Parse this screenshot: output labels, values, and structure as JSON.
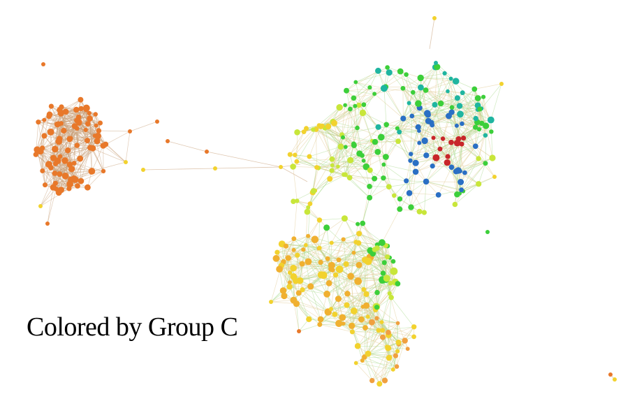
{
  "caption": "Colored by Group C",
  "colors": {
    "orange": "#e8782a",
    "yellow": "#f2d22e",
    "yellowgreen": "#c8e63a",
    "green": "#3ccf3a",
    "teal": "#1fb5a0",
    "blue": "#2a6fc4",
    "red": "#c8262a",
    "edge": "#c8a07a"
  }
}
